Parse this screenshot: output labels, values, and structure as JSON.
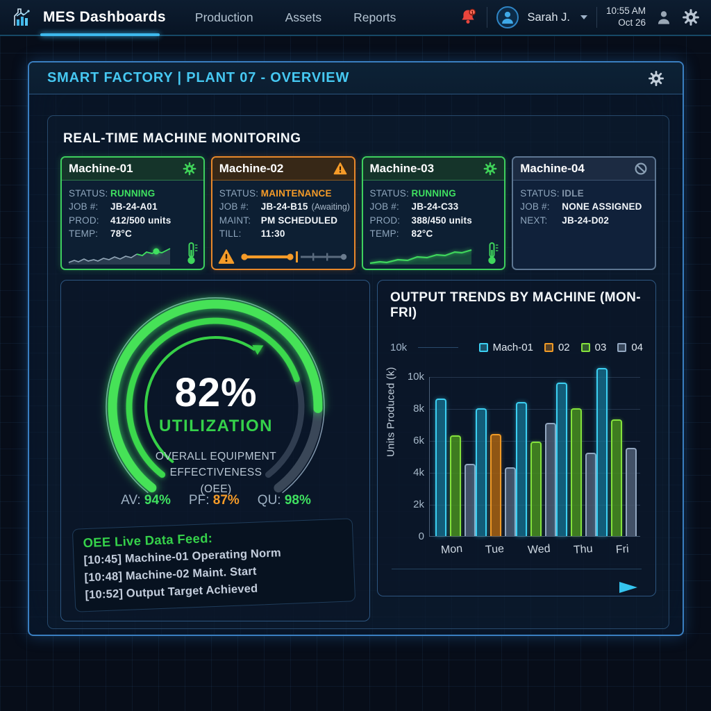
{
  "nav": {
    "brand": "MES Dashboards",
    "items": [
      {
        "label": "Production"
      },
      {
        "label": "Assets"
      },
      {
        "label": "Reports"
      }
    ],
    "bell_badge": "1",
    "user": "Sarah J.",
    "time": "10:55 AM",
    "date": "Oct 26"
  },
  "header": {
    "title": "SMART FACTORY | PLANT 07 - OVERVIEW"
  },
  "monitoring": {
    "title": "REAL-TIME MACHINE MONITORING",
    "machines": [
      {
        "name": "Machine-01",
        "icon": "gear",
        "state": "running",
        "rows": [
          {
            "label": "STATUS:",
            "value": "RUNNING"
          },
          {
            "label": "JOB #:",
            "value": "JB-24-A01"
          },
          {
            "label": "PROD:",
            "value": "412/500 units"
          },
          {
            "label": "TEMP:",
            "value": "78°C"
          }
        ]
      },
      {
        "name": "Machine-02",
        "icon": "warning",
        "state": "maintenance",
        "rows": [
          {
            "label": "STATUS:",
            "value": "MAINTENANCE"
          },
          {
            "label": "JOB #:",
            "value": "JB-24-B15",
            "suffix": "(Awaiting)"
          },
          {
            "label": "MAINT:",
            "value": "PM SCHEDULED"
          },
          {
            "label": "TILL:",
            "value": "11:30"
          }
        ]
      },
      {
        "name": "Machine-03",
        "icon": "gear",
        "state": "running",
        "rows": [
          {
            "label": "STATUS:",
            "value": "RUNNING"
          },
          {
            "label": "JOB #:",
            "value": "JB-24-C33"
          },
          {
            "label": "PROD:",
            "value": "388/450 units"
          },
          {
            "label": "TEMP:",
            "value": "82°C"
          }
        ]
      },
      {
        "name": "Machine-04",
        "icon": "blocked",
        "state": "idle",
        "rows": [
          {
            "label": "STATUS:",
            "value": "IDLE"
          },
          {
            "label": "JOB #:",
            "value": "NONE ASSIGNED"
          },
          {
            "label": "NEXT:",
            "value": "JB-24-D02"
          }
        ]
      }
    ]
  },
  "gauge": {
    "value": "82%",
    "percent_value": 82,
    "label": "UTILIZATION",
    "sub1": "OVERALL EQUIPMENT",
    "sub2": "EFFECTIVENESS",
    "sub3": "(OEE)",
    "stats": [
      {
        "label": "AV:",
        "value": "94%",
        "color": "green"
      },
      {
        "label": "PF:",
        "value": "87%",
        "color": "orange"
      },
      {
        "label": "QU:",
        "value": "98%",
        "color": "green"
      }
    ]
  },
  "feed": {
    "title": "OEE Live Data Feed:",
    "lines": [
      "[10:45] Machine-01 Operating Norm",
      "[10:48] Machine-02 Maint. Start",
      "[10:52] Output Target Achieved"
    ]
  },
  "chart": {
    "title": "OUTPUT TRENDS BY MACHINE (MON-FRI)",
    "legend_axis_label": "10k"
  },
  "chart_data": {
    "type": "bar",
    "title": "OUTPUT TRENDS BY MACHINE (MON-FRI)",
    "categories": [
      "Mon",
      "Tue",
      "Wed",
      "Thu",
      "Fri"
    ],
    "series": [
      {
        "name": "Mach-01",
        "color": "#3cd0f2",
        "values": [
          8.6,
          8.0,
          8.4,
          9.6,
          10.5
        ]
      },
      {
        "name": "02",
        "color": "#f09a26",
        "values": [
          null,
          6.4,
          null,
          null,
          null
        ]
      },
      {
        "name": "03",
        "color": "#84e23c",
        "values": [
          6.3,
          null,
          5.9,
          8.0,
          7.3
        ]
      },
      {
        "name": "04",
        "color": "#93a7c0",
        "values": [
          4.5,
          4.3,
          7.1,
          5.2,
          5.5
        ]
      }
    ],
    "ylabel": "Units Produced (k)",
    "yticks": [
      "10k",
      "8k",
      "6k",
      "4k",
      "2k",
      "0"
    ],
    "ylim": [
      0,
      10
    ],
    "legend_position": "top",
    "grid": true
  },
  "colors": {
    "accent_cyan": "#3cc8f0",
    "success_green": "#3fe060",
    "warning_orange": "#f59b28",
    "idle_gray": "#8294a8",
    "panel_border": "#3a7fc1"
  }
}
